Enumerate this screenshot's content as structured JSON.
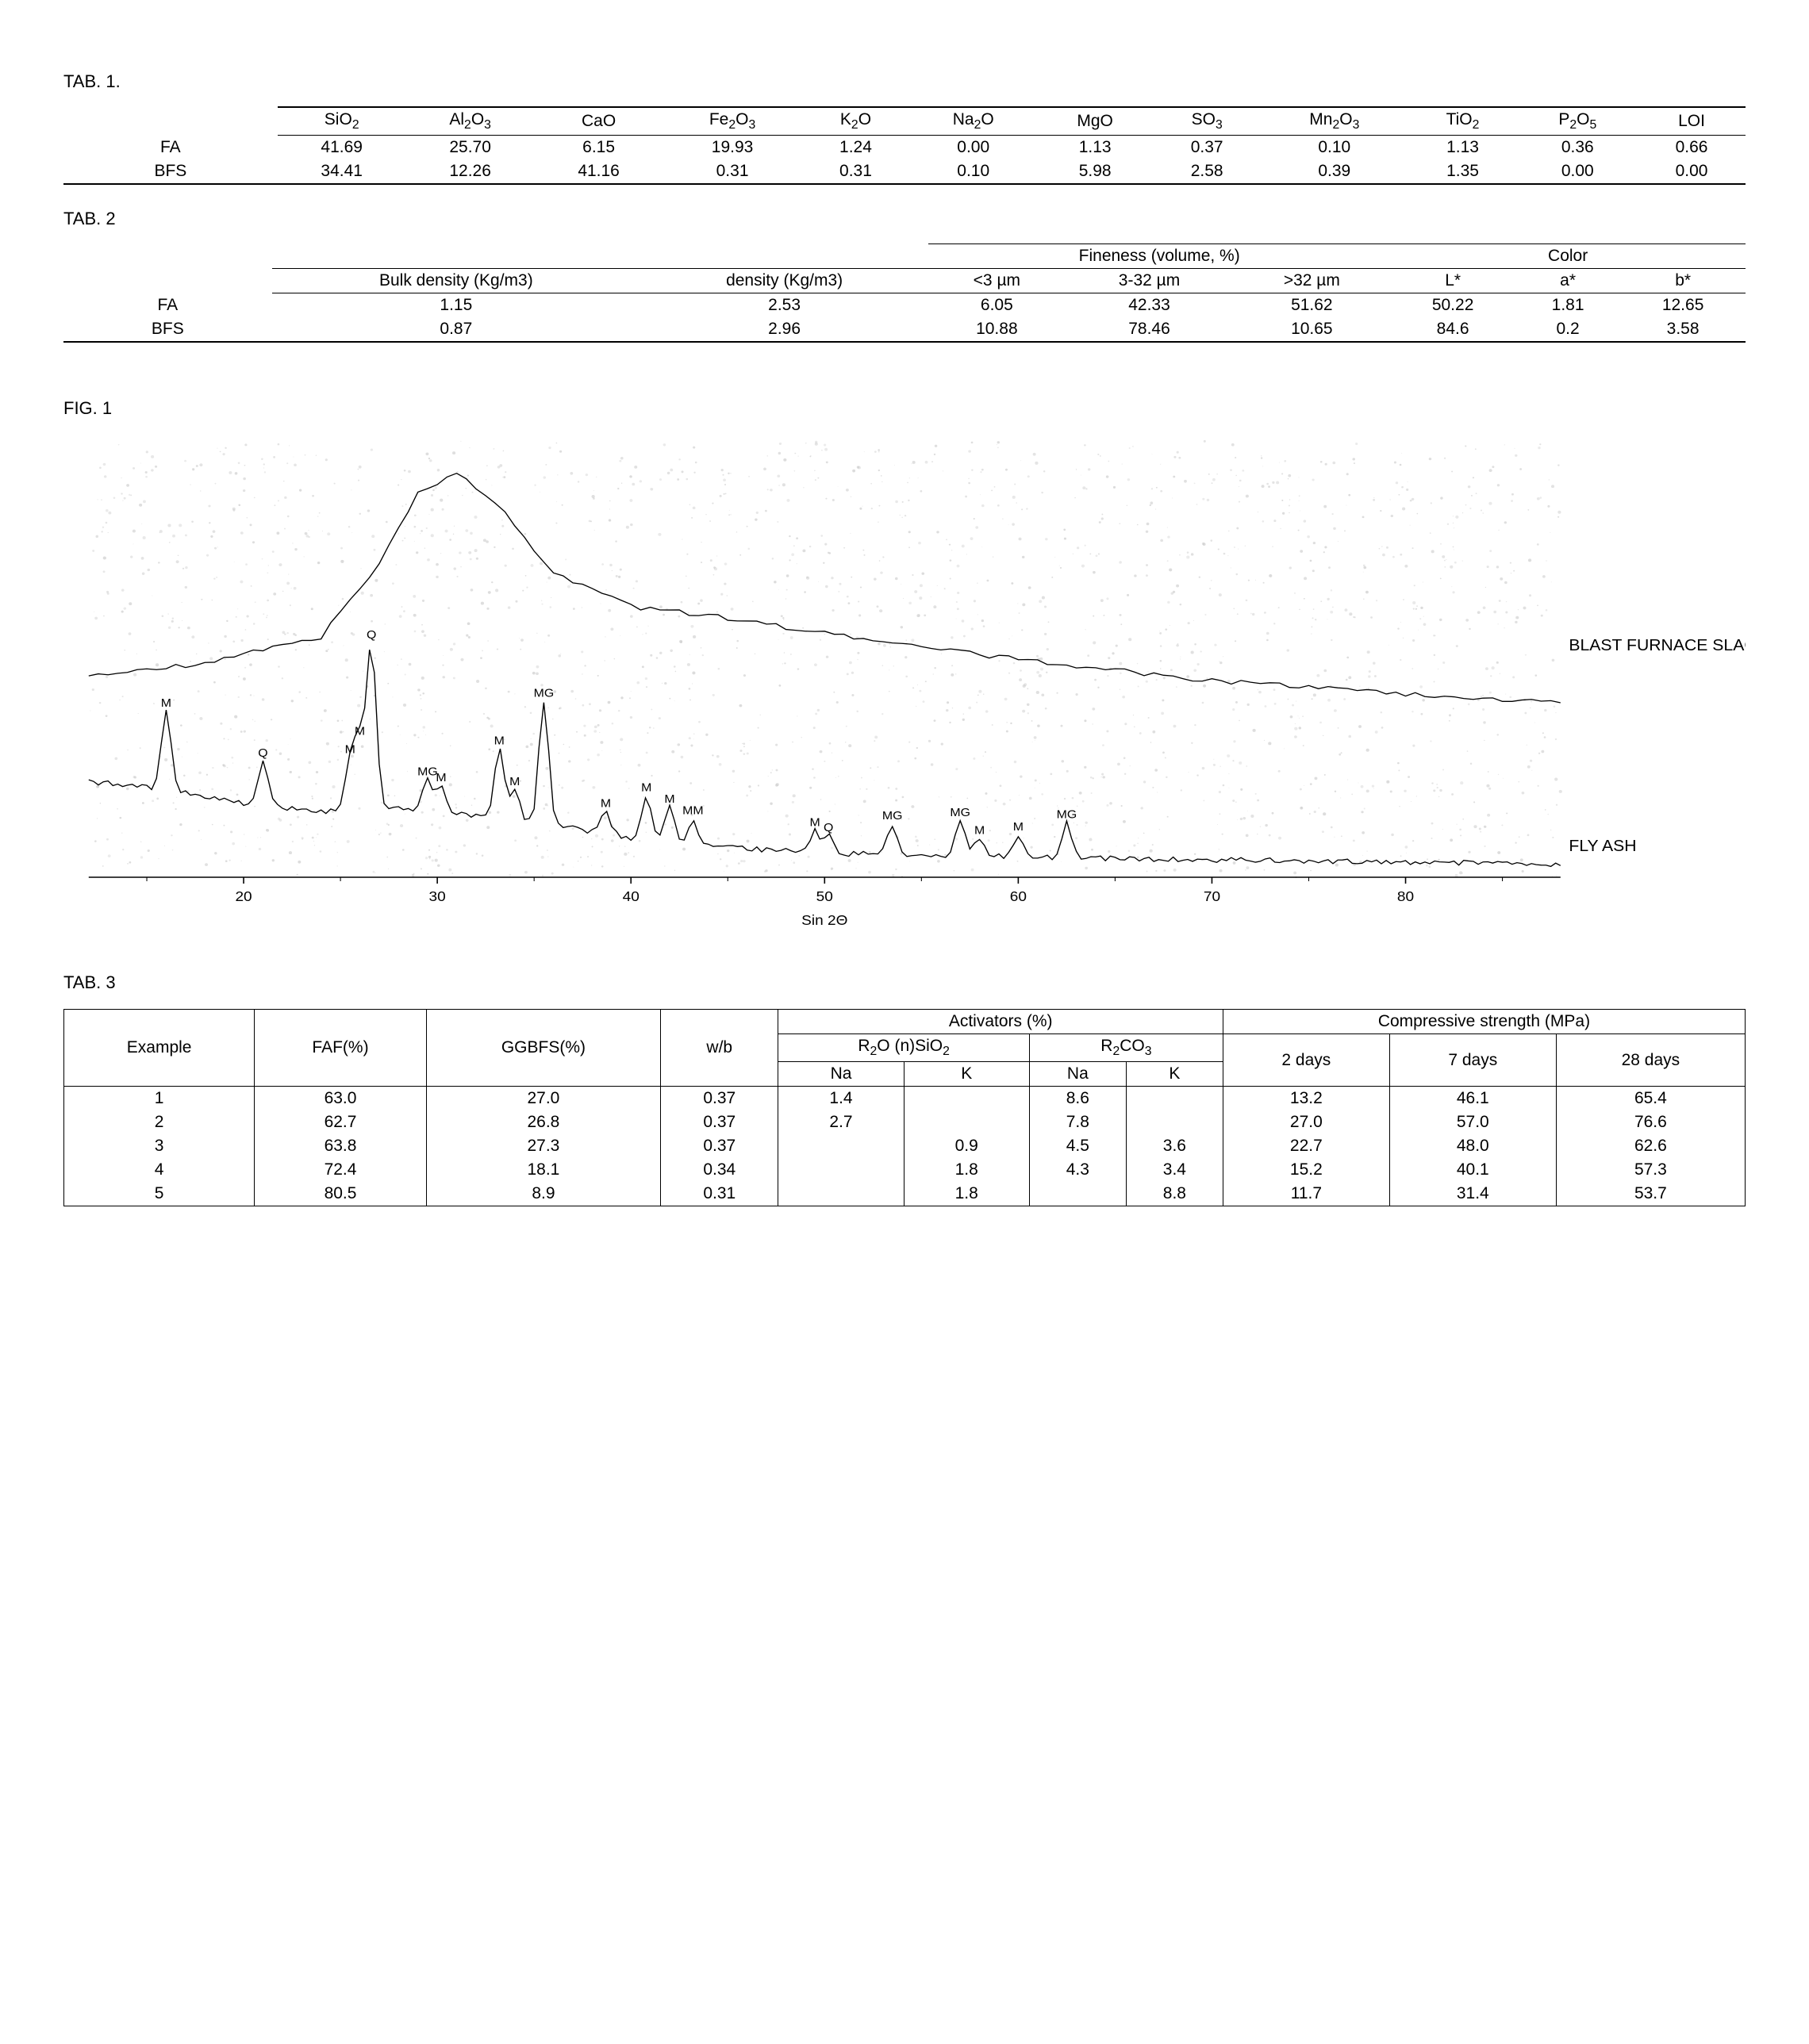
{
  "tab1": {
    "caption": "TAB. 1.",
    "columns_html": [
      "SiO<sub>2</sub>",
      "Al<sub>2</sub>O<sub>3</sub>",
      "CaO",
      "Fe<sub>2</sub>O<sub>3</sub>",
      "K<sub>2</sub>O",
      "Na<sub>2</sub>O",
      "MgO",
      "SO<sub>3</sub>",
      "Mn<sub>2</sub>O<sub>3</sub>",
      "TiO<sub>2</sub>",
      "P<sub>2</sub>O<sub>5</sub>",
      "LOI"
    ],
    "rows": [
      {
        "label": "FA",
        "vals": [
          "41.69",
          "25.70",
          "6.15",
          "19.93",
          "1.24",
          "0.00",
          "1.13",
          "0.37",
          "0.10",
          "1.13",
          "0.36",
          "0.66"
        ]
      },
      {
        "label": "BFS",
        "vals": [
          "34.41",
          "12.26",
          "41.16",
          "0.31",
          "0.31",
          "0.10",
          "5.98",
          "2.58",
          "0.39",
          "1.35",
          "0.00",
          "0.00"
        ]
      }
    ]
  },
  "tab2": {
    "caption": "TAB. 2",
    "group_headers": {
      "fineness": "Fineness (volume, %)",
      "color": "Color"
    },
    "sub_headers": {
      "bulk": "Bulk density (Kg/m3)",
      "density": "density (Kg/m3)",
      "lt3": "<3 µm",
      "m332": "3-32 µm",
      "gt32": ">32 µm",
      "L": "L*",
      "a": "a*",
      "b": "b*"
    },
    "rows": [
      {
        "label": "FA",
        "bulk": "1.15",
        "density": "2.53",
        "lt3": "6.05",
        "m332": "42.33",
        "gt32": "51.62",
        "L": "50.22",
        "a": "1.81",
        "b": "12.65"
      },
      {
        "label": "BFS",
        "bulk": "0.87",
        "density": "2.96",
        "lt3": "10.88",
        "m332": "78.46",
        "gt32": "10.65",
        "L": "84.6",
        "a": "0.2",
        "b": "3.58"
      }
    ]
  },
  "fig1": {
    "caption": "FIG. 1",
    "type": "xrd-diffractogram",
    "xlabel": "Sin 2Θ",
    "xlim": [
      12,
      88
    ],
    "xticks": [
      20,
      30,
      40,
      50,
      60,
      70,
      80
    ],
    "tick_fontsize": 18,
    "label_fontsize": 18,
    "background_color": "#ffffff",
    "speckle_color": "#c8c8c8",
    "line_color": "#000000",
    "line_width": 1.3,
    "axis_color": "#000000",
    "series": [
      {
        "name": "BLAST FURNACE SLAG",
        "label_x": 86,
        "label_y": 0.52,
        "baseline": [
          [
            12,
            0.46
          ],
          [
            18,
            0.49
          ],
          [
            24,
            0.55
          ],
          [
            27,
            0.72
          ],
          [
            29,
            0.88
          ],
          [
            31,
            0.93
          ],
          [
            33,
            0.86
          ],
          [
            36,
            0.7
          ],
          [
            40,
            0.62
          ],
          [
            44,
            0.6
          ],
          [
            50,
            0.56
          ],
          [
            56,
            0.52
          ],
          [
            62,
            0.49
          ],
          [
            70,
            0.45
          ],
          [
            80,
            0.42
          ],
          [
            88,
            0.4
          ]
        ]
      },
      {
        "name": "FLY ASH",
        "label_x": 86,
        "label_y": 0.06,
        "baseline": [
          [
            12,
            0.22
          ],
          [
            16,
            0.2
          ],
          [
            20,
            0.17
          ],
          [
            24,
            0.15
          ],
          [
            28,
            0.16
          ],
          [
            32,
            0.14
          ],
          [
            36,
            0.12
          ],
          [
            40,
            0.09
          ],
          [
            44,
            0.07
          ],
          [
            50,
            0.055
          ],
          [
            56,
            0.05
          ],
          [
            62,
            0.045
          ],
          [
            70,
            0.04
          ],
          [
            80,
            0.035
          ],
          [
            88,
            0.03
          ]
        ],
        "peaks": [
          {
            "x": 16.0,
            "h": 0.18,
            "label": "M"
          },
          {
            "x": 21.0,
            "h": 0.1,
            "label": "Q"
          },
          {
            "x": 25.5,
            "h": 0.12,
            "label": "M"
          },
          {
            "x": 26.0,
            "h": 0.16,
            "label": "M"
          },
          {
            "x": 26.6,
            "h": 0.38,
            "label": "Q"
          },
          {
            "x": 29.5,
            "h": 0.07,
            "label": "MG"
          },
          {
            "x": 30.2,
            "h": 0.06,
            "label": "M"
          },
          {
            "x": 33.2,
            "h": 0.16,
            "label": "M"
          },
          {
            "x": 34.0,
            "h": 0.07,
            "label": "M"
          },
          {
            "x": 35.5,
            "h": 0.28,
            "label": "MG"
          },
          {
            "x": 38.7,
            "h": 0.05,
            "label": "M"
          },
          {
            "x": 40.8,
            "h": 0.1,
            "label": "M"
          },
          {
            "x": 42.0,
            "h": 0.08,
            "label": "M"
          },
          {
            "x": 43.2,
            "h": 0.06,
            "label": "MM"
          },
          {
            "x": 49.5,
            "h": 0.05,
            "label": "M"
          },
          {
            "x": 50.2,
            "h": 0.04,
            "label": "Q"
          },
          {
            "x": 53.5,
            "h": 0.07,
            "label": "MG"
          },
          {
            "x": 57.0,
            "h": 0.08,
            "label": "MG"
          },
          {
            "x": 58.0,
            "h": 0.04,
            "label": "M"
          },
          {
            "x": 60.0,
            "h": 0.05,
            "label": "M"
          },
          {
            "x": 62.5,
            "h": 0.08,
            "label": "MG"
          }
        ]
      }
    ]
  },
  "tab3": {
    "caption": "TAB. 3",
    "headers": {
      "example": "Example",
      "faf": "FAF(%)",
      "ggbfs": "GGBFS(%)",
      "wb": "w/b",
      "activators": "Activators (%)",
      "r2osio2": "R₂O (n)SiO₂",
      "r2co3": "R₂CO₃",
      "na": "Na",
      "k": "K",
      "cs": "Compressive strength (MPa)",
      "d2": "2 days",
      "d7": "7 days",
      "d28": "28 days"
    },
    "headers_html": {
      "r2osio2": "R<sub>2</sub>O (n)SiO<sub>2</sub>",
      "r2co3": "R<sub>2</sub>CO<sub>3</sub>"
    },
    "rows": [
      {
        "ex": "1",
        "faf": "63.0",
        "ggbfs": "27.0",
        "wb": "0.37",
        "na1": "1.4",
        "k1": "",
        "na2": "8.6",
        "k2": "",
        "d2": "13.2",
        "d7": "46.1",
        "d28": "65.4"
      },
      {
        "ex": "2",
        "faf": "62.7",
        "ggbfs": "26.8",
        "wb": "0.37",
        "na1": "2.7",
        "k1": "",
        "na2": "7.8",
        "k2": "",
        "d2": "27.0",
        "d7": "57.0",
        "d28": "76.6"
      },
      {
        "ex": "3",
        "faf": "63.8",
        "ggbfs": "27.3",
        "wb": "0.37",
        "na1": "",
        "k1": "0.9",
        "na2": "4.5",
        "k2": "3.6",
        "d2": "22.7",
        "d7": "48.0",
        "d28": "62.6"
      },
      {
        "ex": "4",
        "faf": "72.4",
        "ggbfs": "18.1",
        "wb": "0.34",
        "na1": "",
        "k1": "1.8",
        "na2": "4.3",
        "k2": "3.4",
        "d2": "15.2",
        "d7": "40.1",
        "d28": "57.3"
      },
      {
        "ex": "5",
        "faf": "80.5",
        "ggbfs": "8.9",
        "wb": "0.31",
        "na1": "",
        "k1": "1.8",
        "na2": "",
        "k2": "8.8",
        "d2": "11.7",
        "d7": "31.4",
        "d28": "53.7"
      }
    ]
  }
}
